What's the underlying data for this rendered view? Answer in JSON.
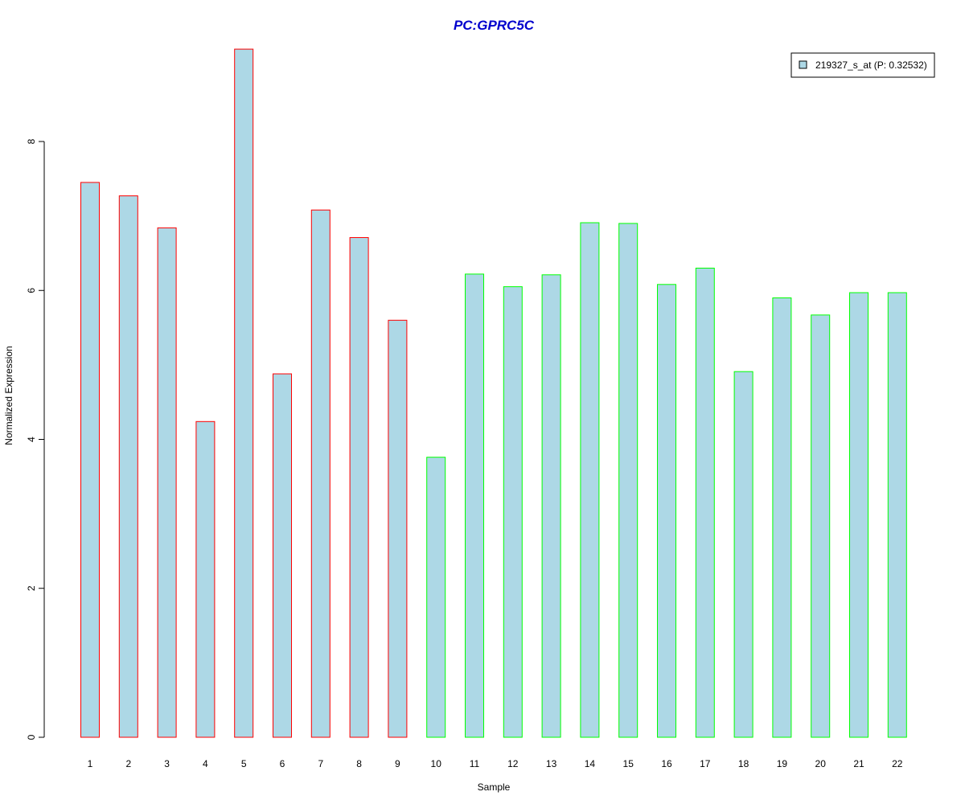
{
  "chart_data": {
    "type": "bar",
    "title": "PC:GPRC5C",
    "xlabel": "Sample",
    "ylabel": "Normalized Expression",
    "categories": [
      "1",
      "2",
      "3",
      "4",
      "5",
      "6",
      "7",
      "8",
      "9",
      "10",
      "11",
      "12",
      "13",
      "14",
      "15",
      "16",
      "17",
      "18",
      "19",
      "20",
      "21",
      "22"
    ],
    "series": [
      {
        "name": "219327_s_at (P: 0.32532)",
        "values": [
          7.45,
          7.27,
          6.84,
          4.24,
          9.24,
          4.88,
          7.08,
          6.71,
          5.6,
          3.76,
          6.22,
          6.05,
          6.21,
          6.91,
          6.9,
          6.08,
          6.3,
          4.91,
          5.9,
          5.67,
          5.97,
          5.97
        ]
      }
    ],
    "group_outline": [
      "red",
      "red",
      "red",
      "red",
      "red",
      "red",
      "red",
      "red",
      "red",
      "green",
      "green",
      "green",
      "green",
      "green",
      "green",
      "green",
      "green",
      "green",
      "green",
      "green",
      "green",
      "green"
    ],
    "yticks": [
      0,
      2,
      4,
      6,
      8
    ],
    "ylim": [
      0,
      9.24
    ],
    "grid": false,
    "legend_position": "top-right",
    "colors": {
      "bar_fill": "#add8e6",
      "outline_red": "#ff0000",
      "outline_green": "#00ff00",
      "title": "#0000cd",
      "axis": "#000000"
    }
  }
}
